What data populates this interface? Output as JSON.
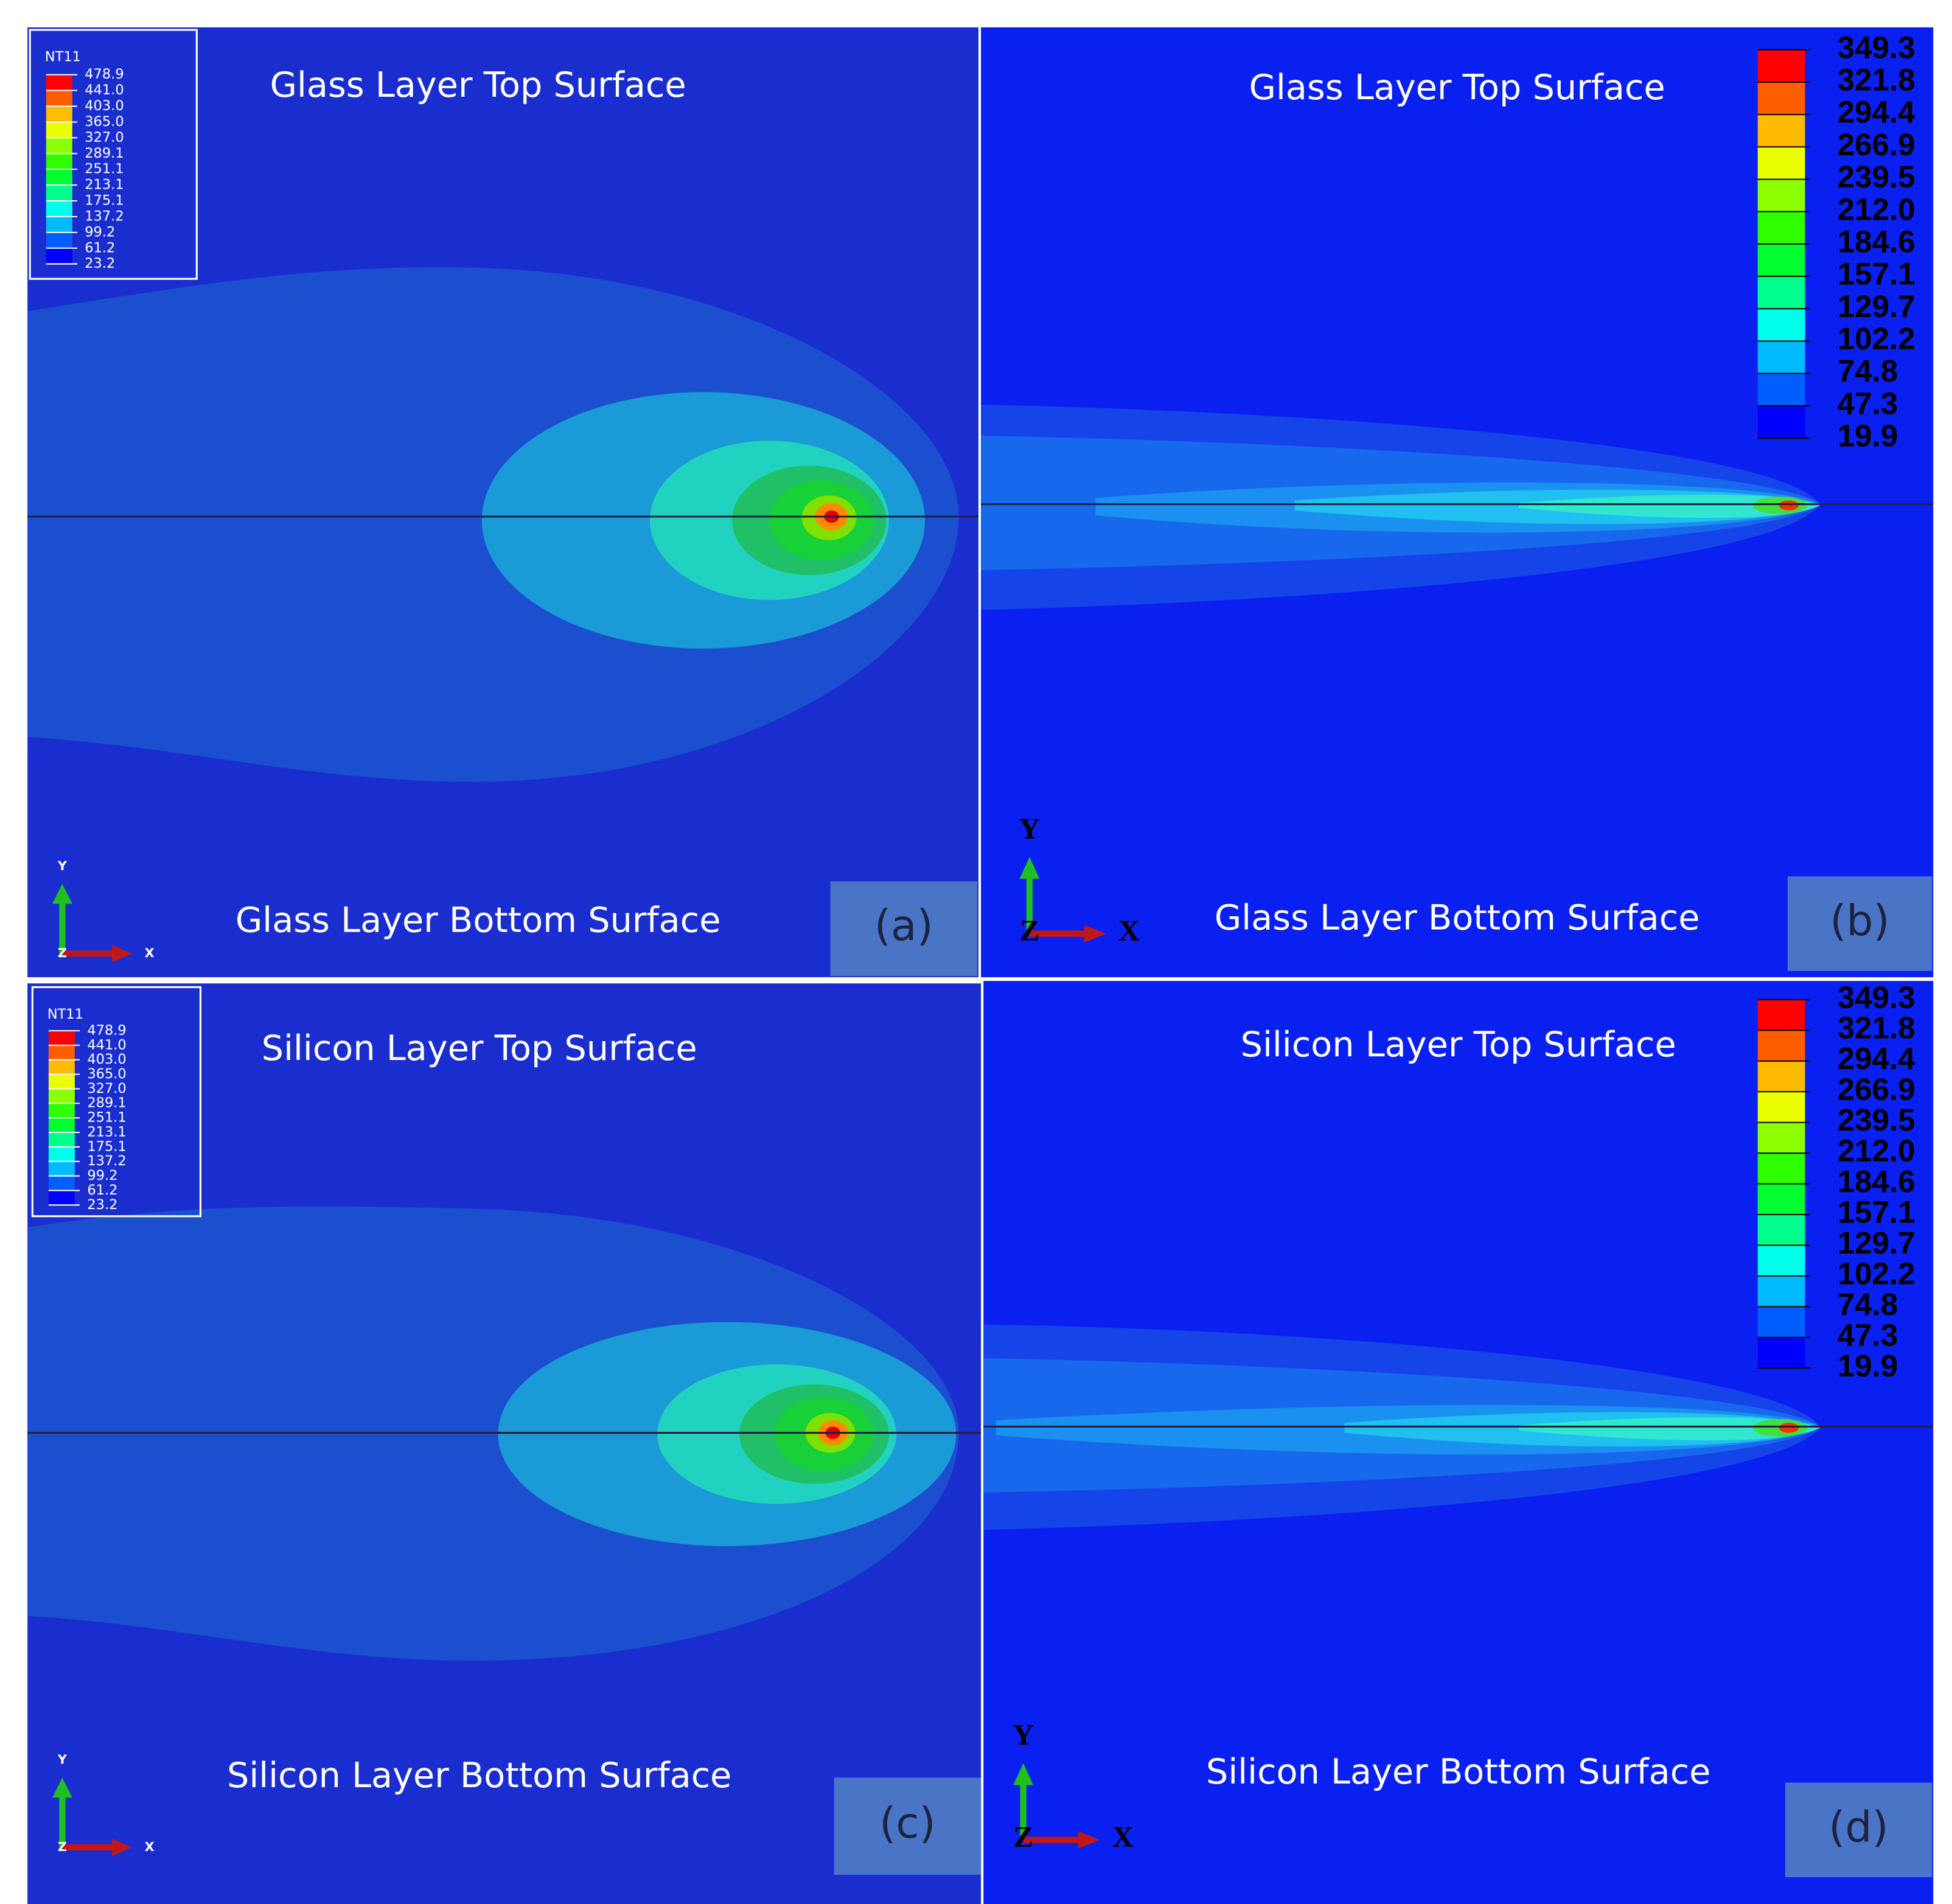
{
  "panels": [
    {
      "label": "(a)",
      "top_label": "Glass Layer Top  Surface",
      "bottom_label": "Glass Layer Bottom  Surface",
      "legend": {
        "title": "NT11",
        "values": [
          478.9,
          441,
          403,
          365,
          327,
          289.1,
          251.1,
          213.1,
          175.1,
          137.2,
          99.2,
          61.2,
          23.2
        ],
        "labels": [
          "478.9",
          "441.0",
          "403.0",
          "365.0",
          "327.0",
          "289.1",
          "251.1",
          "213.1",
          "175.1",
          "137.2",
          "99.2",
          "61.2",
          "23.2"
        ]
      },
      "axes": {
        "y": "Y",
        "z": "Z",
        "x": "X"
      }
    },
    {
      "label": "(b)",
      "top_label": "Glass Layer Top  Surface",
      "bottom_label": "Glass Layer Bottom  Surface",
      "legend": {
        "values": [
          349.3,
          321.8,
          294.4,
          266.9,
          239.5,
          212,
          184.6,
          157.1,
          129.7,
          102.2,
          74.8,
          47.3,
          19.9
        ],
        "labels": [
          "349.3",
          "321.8",
          "294.4",
          "266.9",
          "239.5",
          "212.0",
          "184.6",
          "157.1",
          "129.7",
          "102.2",
          "74.8",
          "47.3",
          "19.9"
        ]
      },
      "axes": {
        "y": "Y",
        "z": "Z",
        "x": "X"
      }
    },
    {
      "label": "(c)",
      "top_label": "Silicon  Layer Top  Surface",
      "bottom_label": "Silicon Layer Bottom  Surface",
      "legend": {
        "title": "NT11",
        "values": [
          478.9,
          441,
          403,
          365,
          327,
          289.1,
          251.1,
          213.1,
          175.1,
          137.2,
          99.2,
          61.2,
          23.2
        ],
        "labels": [
          "478.9",
          "441.0",
          "403.0",
          "365.0",
          "327.0",
          "289.1",
          "251.1",
          "213.1",
          "175.1",
          "137.2",
          "99.2",
          "61.2",
          "23.2"
        ]
      },
      "axes": {
        "y": "Y",
        "z": "Z",
        "x": "X"
      }
    },
    {
      "label": "(d)",
      "top_label": "Silicon  Layer Top  Surface",
      "bottom_label": "Silicon Layer Bottom  Surface",
      "legend": {
        "values": [
          349.3,
          321.8,
          294.4,
          266.9,
          239.5,
          212,
          184.6,
          157.1,
          129.7,
          102.2,
          74.8,
          47.3,
          19.9
        ],
        "labels": [
          "349.3",
          "321.8",
          "294.4",
          "266.9",
          "239.5",
          "212.0",
          "184.6",
          "157.1",
          "129.7",
          "102.2",
          "74.8",
          "47.3",
          "19.9"
        ]
      },
      "axes": {
        "y": "Y",
        "z": "Z",
        "x": "X"
      }
    }
  ]
}
